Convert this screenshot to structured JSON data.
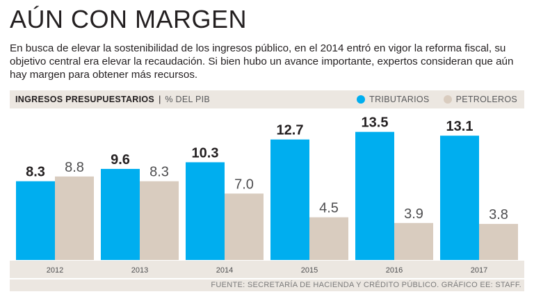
{
  "title": "AÚN CON MARGEN",
  "subtitle": "En busca de elevar la sostenibilidad de los ingresos público, en el 2014 entró en vigor la reforma fiscal, su objetivo central era elevar la recaudación. Si bien hubo un avance importante, expertos consideran que aún hay margen para obtener más recursos.",
  "header": {
    "main_label": "INGRESOS PRESUPUESTARIOS",
    "separator": "|",
    "unit_label": "% DEL PIB"
  },
  "legend": {
    "series_a": "TRIBUTARIOS",
    "series_b": "PETROLEROS"
  },
  "colors": {
    "tributarios": "#00aeef",
    "petroleros": "#d9ccbf",
    "band": "#ece7e1"
  },
  "footer": "FUENTE: SECRETARÍA DE HACIENDA Y CRÉDITO PÚBLICO.  GRÁFICO EE: STAFF.",
  "chart_data": {
    "type": "bar",
    "title": "INGRESOS PRESUPUESTARIOS",
    "ylabel": "% DEL PIB",
    "xlabel": "",
    "categories": [
      "2012",
      "2013",
      "2014",
      "2015",
      "2016",
      "2017"
    ],
    "series": [
      {
        "name": "TRIBUTARIOS",
        "values": [
          8.3,
          9.6,
          10.3,
          12.7,
          13.5,
          13.1
        ],
        "labels": [
          "8.3",
          "9.6",
          "10.3",
          "12.7",
          "13.5",
          "13.1"
        ]
      },
      {
        "name": "PETROLEROS",
        "values": [
          8.8,
          8.3,
          7.0,
          4.5,
          3.9,
          3.8
        ],
        "labels": [
          "8.8",
          "8.3",
          "7.0",
          "4.5",
          "3.9",
          "3.8"
        ]
      }
    ],
    "ylim": [
      0,
      13.5
    ],
    "grid": false,
    "legend_position": "top-right"
  }
}
